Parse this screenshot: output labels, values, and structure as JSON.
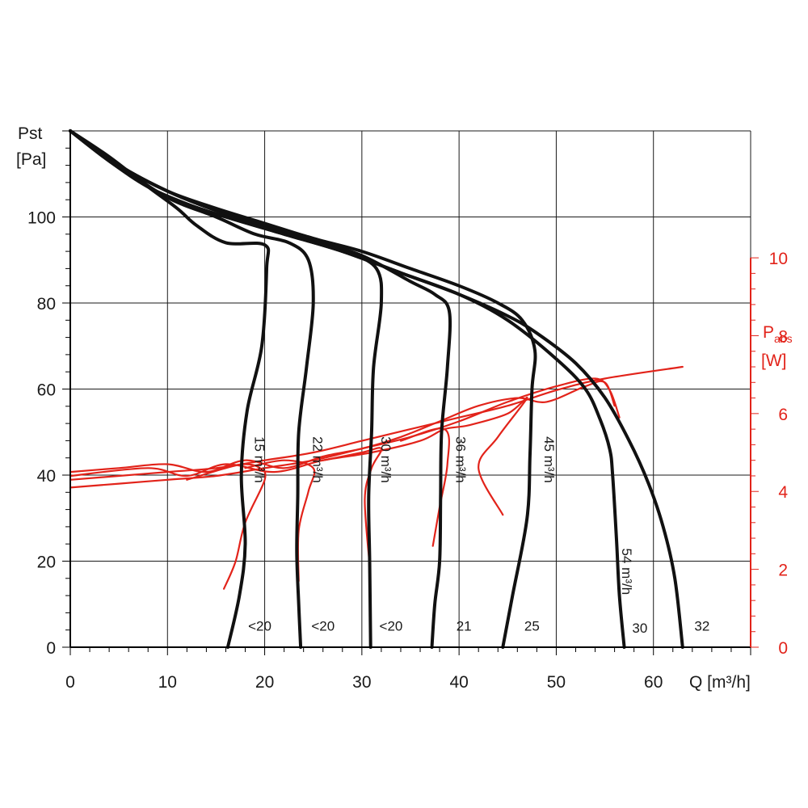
{
  "chart_data": {
    "type": "line",
    "xlabel": "Q [m³/h]",
    "ylabel_line1": "Pst",
    "ylabel_line2": "[Pa]",
    "y2label_main": "P",
    "y2label_sub": "abs",
    "y2label_unit": "[W]",
    "xlim": [
      0,
      70
    ],
    "ylim": [
      0,
      120
    ],
    "y2lim": [
      0,
      10
    ],
    "x_ticks": [
      0,
      10,
      20,
      30,
      40,
      50,
      60
    ],
    "y_ticks": [
      0,
      20,
      40,
      60,
      80,
      100
    ],
    "y2_ticks": [
      0,
      2,
      4,
      6,
      8,
      10
    ],
    "grid": true,
    "pressure_series": [
      {
        "name": "15 m³/h",
        "end_label": "<20",
        "points": [
          [
            0,
            120
          ],
          [
            4,
            114
          ],
          [
            8,
            107
          ],
          [
            11,
            102
          ],
          [
            13,
            98
          ],
          [
            16,
            94
          ],
          [
            20,
            93.5
          ],
          [
            20.2,
            88
          ],
          [
            19.7,
            70
          ],
          [
            18.2,
            55
          ],
          [
            17.6,
            40
          ],
          [
            18,
            24
          ],
          [
            17.4,
            12
          ],
          [
            16.2,
            0
          ]
        ]
      },
      {
        "name": "22 m³/h",
        "end_label": "<20",
        "points": [
          [
            0,
            120
          ],
          [
            5,
            112
          ],
          [
            10,
            104.5
          ],
          [
            15,
            100
          ],
          [
            19,
            96
          ],
          [
            22.5,
            94
          ],
          [
            24.5,
            90
          ],
          [
            25,
            80
          ],
          [
            24.3,
            65
          ],
          [
            23.5,
            50
          ],
          [
            23.4,
            35
          ],
          [
            23.3,
            22
          ],
          [
            23.5,
            10
          ],
          [
            23.7,
            0
          ]
        ]
      },
      {
        "name": "30 m³/h",
        "end_label": "<20",
        "points": [
          [
            0,
            120
          ],
          [
            5,
            112
          ],
          [
            10,
            106
          ],
          [
            15,
            101.5
          ],
          [
            20,
            98
          ],
          [
            25,
            95
          ],
          [
            28.5,
            92
          ],
          [
            31.5,
            88
          ],
          [
            32,
            80
          ],
          [
            31.2,
            65
          ],
          [
            31,
            50
          ],
          [
            30.7,
            35
          ],
          [
            30.8,
            20
          ],
          [
            30.9,
            0
          ]
        ]
      },
      {
        "name": "36 m³/h",
        "end_label": "21",
        "points": [
          [
            0,
            120
          ],
          [
            5,
            112
          ],
          [
            10,
            106
          ],
          [
            15,
            101.5
          ],
          [
            20,
            98
          ],
          [
            25,
            94.5
          ],
          [
            30,
            91
          ],
          [
            35,
            85
          ],
          [
            37.5,
            82
          ],
          [
            39,
            78
          ],
          [
            38.8,
            65
          ],
          [
            38.2,
            50
          ],
          [
            38.1,
            35
          ],
          [
            38,
            20
          ],
          [
            37.5,
            10
          ],
          [
            37.2,
            0
          ]
        ]
      },
      {
        "name": "45 m³/h",
        "end_label": "25",
        "points": [
          [
            0,
            120
          ],
          [
            5,
            112
          ],
          [
            10,
            106
          ],
          [
            15,
            102
          ],
          [
            20,
            98.5
          ],
          [
            25,
            95
          ],
          [
            30,
            92
          ],
          [
            35,
            88
          ],
          [
            40,
            84
          ],
          [
            44,
            80
          ],
          [
            46.5,
            76
          ],
          [
            47.8,
            69
          ],
          [
            47.5,
            60
          ],
          [
            47.3,
            45
          ],
          [
            47,
            30
          ],
          [
            45.5,
            12
          ],
          [
            44.5,
            0
          ]
        ]
      },
      {
        "name": "54 m³/h",
        "end_label": "30",
        "points": [
          [
            0,
            120
          ],
          [
            4,
            113
          ],
          [
            8,
            107
          ],
          [
            12,
            103
          ],
          [
            16,
            100
          ],
          [
            22,
            96
          ],
          [
            28,
            92
          ],
          [
            34,
            87
          ],
          [
            40,
            82
          ],
          [
            45,
            76
          ],
          [
            50,
            67
          ],
          [
            53,
            60
          ],
          [
            54.5,
            53
          ],
          [
            55.5,
            46
          ],
          [
            55.8,
            40
          ],
          [
            56.2,
            25
          ],
          [
            56.5,
            12
          ],
          [
            57,
            0
          ]
        ]
      },
      {
        "name": "",
        "end_label": "32",
        "points": [
          [
            0,
            120
          ],
          [
            4,
            113
          ],
          [
            8,
            107
          ],
          [
            12,
            103
          ],
          [
            16,
            100
          ],
          [
            22,
            96
          ],
          [
            28,
            92
          ],
          [
            34,
            87
          ],
          [
            40,
            82
          ],
          [
            45,
            77
          ],
          [
            48,
            73
          ],
          [
            52,
            66
          ],
          [
            55,
            58
          ],
          [
            57.5,
            48
          ],
          [
            59.5,
            38
          ],
          [
            61,
            28
          ],
          [
            62.2,
            16
          ],
          [
            63,
            0
          ]
        ]
      }
    ],
    "power_series": [
      {
        "points": [
          [
            0,
            4.3
          ],
          [
            5,
            4.4
          ],
          [
            10,
            4.5
          ],
          [
            15,
            4.6
          ],
          [
            20,
            4.8
          ],
          [
            25,
            5.0
          ],
          [
            30,
            5.3
          ],
          [
            35,
            5.6
          ],
          [
            40,
            5.9
          ],
          [
            45,
            6.2
          ],
          [
            50,
            6.6
          ],
          [
            55,
            6.9
          ],
          [
            63,
            7.2
          ]
        ]
      },
      {
        "points": [
          [
            0,
            4.5
          ],
          [
            5,
            4.6
          ],
          [
            10,
            4.7
          ],
          [
            14,
            4.5
          ],
          [
            18,
            4.8
          ],
          [
            22,
            4.6
          ],
          [
            26,
            4.9
          ],
          [
            30,
            5.1
          ],
          [
            34,
            5.4
          ],
          [
            38,
            5.8
          ],
          [
            42,
            6.2
          ],
          [
            46,
            6.4
          ],
          [
            49,
            6.3
          ],
          [
            53,
            6.7
          ],
          [
            55,
            6.8
          ],
          [
            56,
            6.2
          ]
        ]
      },
      {
        "points": [
          [
            0,
            4.1
          ],
          [
            5,
            4.2
          ],
          [
            10,
            4.3
          ],
          [
            15,
            4.4
          ],
          [
            20,
            4.6
          ],
          [
            25,
            4.8
          ],
          [
            30,
            5.1
          ],
          [
            35,
            5.4
          ],
          [
            40,
            5.8
          ],
          [
            45,
            6.3
          ],
          [
            50,
            6.7
          ],
          [
            54,
            6.9
          ],
          [
            55.5,
            6.6
          ],
          [
            56.5,
            5.9
          ]
        ]
      },
      {
        "points": [
          [
            0,
            4.4
          ],
          [
            8,
            4.6
          ],
          [
            12,
            4.4
          ],
          [
            16,
            4.7
          ],
          [
            21,
            4.5
          ],
          [
            26,
            4.8
          ],
          [
            31,
            5.0
          ],
          [
            36,
            5.3
          ],
          [
            38.5,
            5.6
          ],
          [
            41,
            5.7
          ],
          [
            45,
            6.0
          ],
          [
            47,
            6.4
          ],
          [
            44,
            5.4
          ],
          [
            42,
            4.6
          ],
          [
            44.5,
            3.4
          ]
        ]
      },
      {
        "points": [
          [
            12,
            4.3
          ],
          [
            16,
            4.6
          ],
          [
            18,
            4.7
          ],
          [
            19.5,
            4.6
          ],
          [
            20,
            4.3
          ],
          [
            18,
            3.2
          ],
          [
            17,
            2.2
          ],
          [
            15.8,
            1.5
          ]
        ]
      },
      {
        "points": [
          [
            18,
            4.6
          ],
          [
            22,
            4.8
          ],
          [
            25,
            4.6
          ],
          [
            24.5,
            4.0
          ],
          [
            23.5,
            3.0
          ],
          [
            23.5,
            1.7
          ]
        ]
      },
      {
        "points": [
          [
            26,
            4.8
          ],
          [
            30,
            5.0
          ],
          [
            32,
            5.1
          ],
          [
            31,
            4.6
          ],
          [
            30.3,
            3.8
          ],
          [
            30.8,
            2.1
          ]
        ]
      },
      {
        "points": [
          [
            34,
            5.3
          ],
          [
            38.5,
            5.6
          ],
          [
            38.8,
            4.7
          ],
          [
            38,
            3.6
          ],
          [
            37.3,
            2.6
          ]
        ]
      }
    ],
    "label_positions": [
      {
        "text": "15 m³/h",
        "x": 19.0,
        "y": 49
      },
      {
        "text": "22 m³/h",
        "x": 25.0,
        "y": 49
      },
      {
        "text": "30 m³/h",
        "x": 32.0,
        "y": 49
      },
      {
        "text": "36 m³/h",
        "x": 39.7,
        "y": 49
      },
      {
        "text": "45 m³/h",
        "x": 48.8,
        "y": 49
      },
      {
        "text": "54 m³/h",
        "x": 56.8,
        "y": 23
      }
    ],
    "end_label_positions": [
      {
        "text": "<20",
        "x": 19.5,
        "y": 5
      },
      {
        "text": "<20",
        "x": 26,
        "y": 5
      },
      {
        "text": "<20",
        "x": 33,
        "y": 5
      },
      {
        "text": "21",
        "x": 40.5,
        "y": 5
      },
      {
        "text": "25",
        "x": 47.5,
        "y": 5
      },
      {
        "text": "30",
        "x": 58.6,
        "y": 4.5
      },
      {
        "text": "32",
        "x": 65,
        "y": 5
      }
    ]
  },
  "colors": {
    "pressure": "#111111",
    "power": "#e2231a",
    "grid": "#1a1a1a",
    "right_axis": "#e2231a"
  }
}
